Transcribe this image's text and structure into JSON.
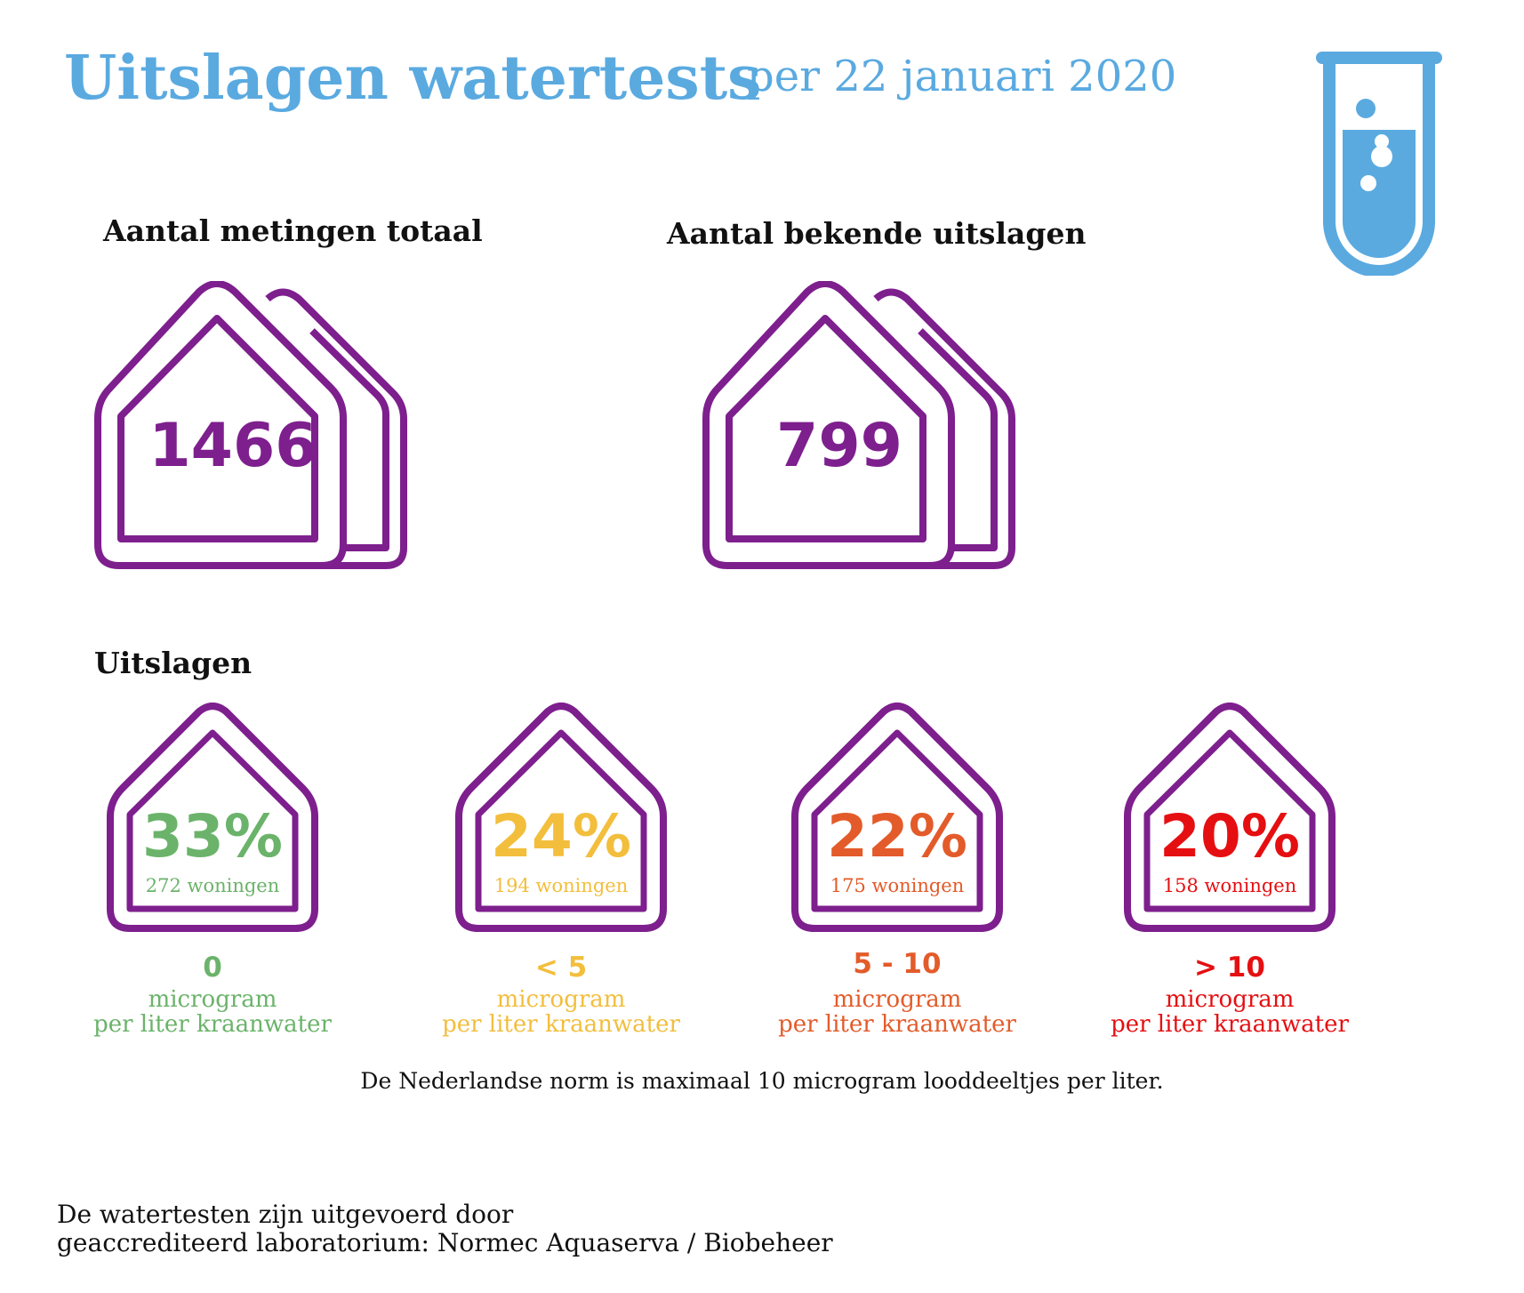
{
  "header": {
    "title": "Uitslagen watertests",
    "subtitle": "per 22 januari 2020"
  },
  "totals": [
    {
      "heading": "Aantal metingen totaal",
      "value": "1466"
    },
    {
      "heading": "Aantal bekende uitslagen",
      "value": "799"
    }
  ],
  "results": {
    "heading": "Uitslagen",
    "items": [
      {
        "percent": "33%",
        "count": "272 woningen",
        "range": "0",
        "unit_line1": "microgram",
        "unit_line2": "per liter kraanwater",
        "color": "#6BB36B"
      },
      {
        "percent": "24%",
        "count": "194 woningen",
        "range": "< 5",
        "unit_line1": "microgram",
        "unit_line2": "per liter kraanwater",
        "color": "#F2BE3C"
      },
      {
        "percent": "22%",
        "count": "175 woningen",
        "range": "5 - 10",
        "unit_line1": "microgram",
        "unit_line2": "per liter kraanwater",
        "color": "#E35B2A"
      },
      {
        "percent": "20%",
        "count": "158 woningen",
        "range": "> 10",
        "unit_line1": "microgram",
        "unit_line2": "per liter kraanwater",
        "color": "#E50F12"
      }
    ]
  },
  "norm_text": "De Nederlandse norm is maximaal 10 microgram looddeeltjes per liter.",
  "footer": {
    "line1": "De watertesten zijn uitgevoerd door",
    "line2": "geaccrediteerd laboratorium: Normec Aquaserva / Biobeheer"
  },
  "colors": {
    "title": "#5AAAE0",
    "house_outline": "#7E1F8E",
    "tube": "#5AAAE0"
  },
  "icons": {
    "header_icon": "test-tube-icon",
    "house_icon": "house-outline-icon",
    "double_house_icon": "double-house-icon"
  }
}
